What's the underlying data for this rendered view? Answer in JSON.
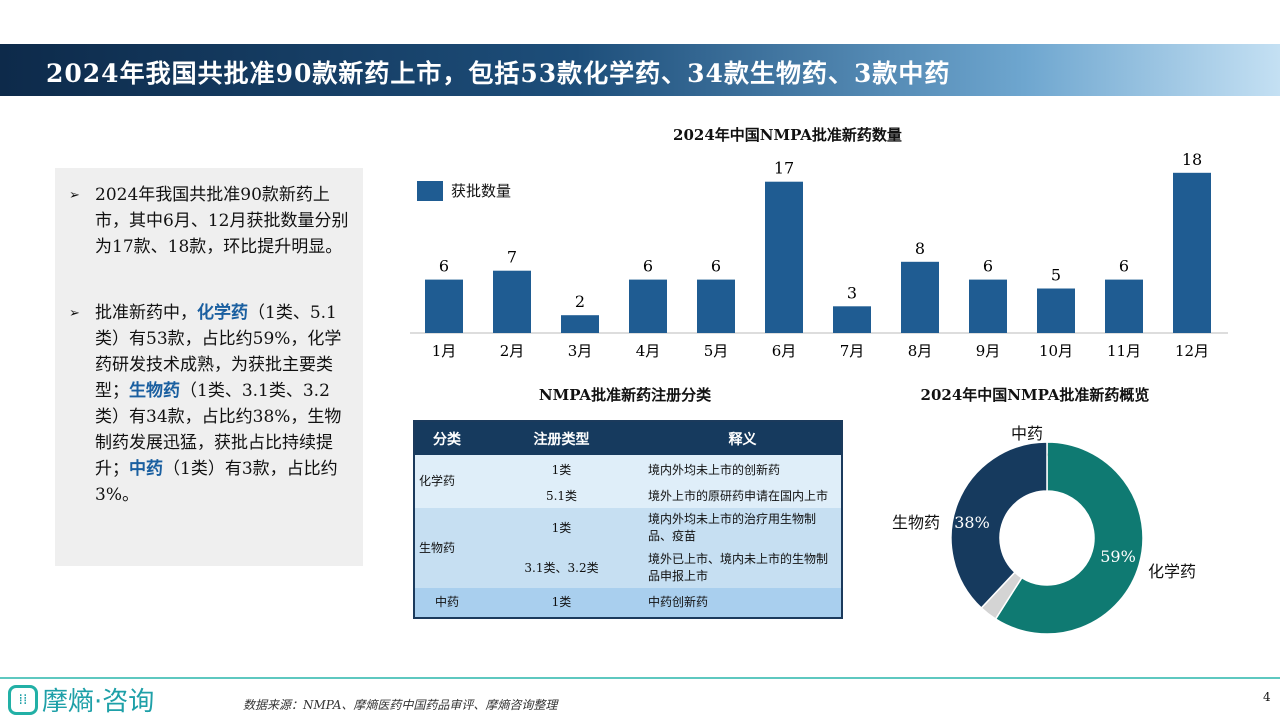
{
  "title": "2024年我国共批准90款新药上市，包括53款化学药、34款生物药、3款中药",
  "panel": {
    "p1": "2024年我国共批准90款新药上市，其中6月、12月获批数量分别为17款、18款，环比提升明显。",
    "p2": [
      {
        "t": "批准新药中，",
        "h": false
      },
      {
        "t": "化学药",
        "h": true
      },
      {
        "t": "（1类、5.1类）有53款，占比约59%，化学药研发技术成熟，为获批主要类型；",
        "h": false
      },
      {
        "t": "生物药",
        "h": true
      },
      {
        "t": "（1类、3.1类、3.2类）有34款，占比约38%，生物制药发展迅猛，获批占比持续提升；",
        "h": false
      },
      {
        "t": "中药",
        "h": true
      },
      {
        "t": "（1类）有3款，占比约3%。",
        "h": false
      }
    ]
  },
  "chart_data": [
    {
      "type": "bar",
      "title": "2024年中国NMPA批准新药数量",
      "legend": "获批数量",
      "categories": [
        "1月",
        "2月",
        "3月",
        "4月",
        "5月",
        "6月",
        "7月",
        "8月",
        "9月",
        "10月",
        "11月",
        "12月"
      ],
      "values": [
        6,
        7,
        2,
        6,
        6,
        17,
        3,
        8,
        6,
        5,
        6,
        18
      ],
      "color": "#1f5c92"
    },
    {
      "type": "pie",
      "title": "2024年中国NMPA批准新药概览",
      "slices": [
        {
          "label": "化学药",
          "value": 59,
          "text": "59%",
          "color": "#0f7a72"
        },
        {
          "label": "中药",
          "value": 3,
          "text": "3%",
          "color": "#d4d4d4"
        },
        {
          "label": "生物药",
          "value": 38,
          "text": "38%",
          "color": "#163a5e"
        }
      ]
    }
  ],
  "table": {
    "title": "NMPA批准新药注册分类",
    "headers": [
      "分类",
      "注册类型",
      "释义"
    ],
    "rows": [
      [
        "化学药",
        "1类",
        "境内外均未上市的创新药"
      ],
      [
        "",
        "5.1类",
        "境外上市的原研药申请在国内上市"
      ],
      [
        "生物药",
        "1类",
        "境内外均未上市的治疗用生物制品、疫苗"
      ],
      [
        "",
        "3.1类、3.2类",
        "境外已上市、境内未上市的生物制品申报上市"
      ],
      [
        "中药",
        "1类",
        "中药创新药"
      ]
    ]
  },
  "footer": {
    "logo": "摩熵·咨询",
    "source": "数据来源：NMPA、摩熵医药中国药品审评、摩熵咨询整理",
    "page": "4"
  }
}
